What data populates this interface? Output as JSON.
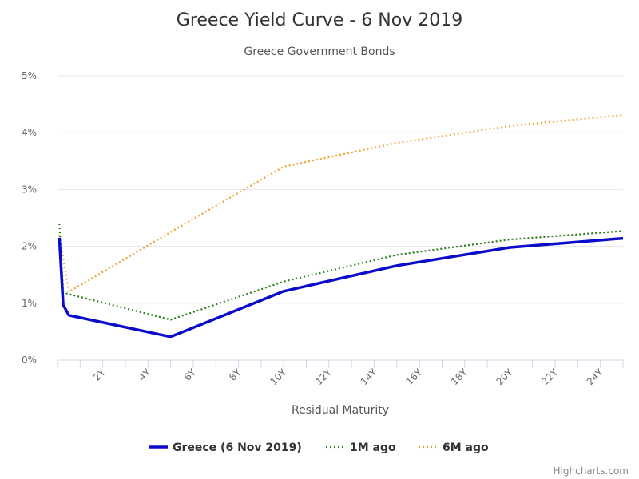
{
  "chart_data": {
    "type": "line",
    "title": "Greece Yield Curve - 6 Nov 2019",
    "subtitle": "Greece Government Bonds",
    "xlabel": "Residual Maturity",
    "ylabel": "",
    "xlim": [
      0,
      25
    ],
    "ylim": [
      0,
      5
    ],
    "x_ticks": [
      2,
      4,
      6,
      8,
      10,
      12,
      14,
      16,
      18,
      20,
      22,
      24
    ],
    "x_tick_labels": [
      "2Y",
      "4Y",
      "6Y",
      "8Y",
      "10Y",
      "12Y",
      "14Y",
      "16Y",
      "18Y",
      "20Y",
      "22Y",
      "24Y"
    ],
    "y_ticks": [
      0,
      1,
      2,
      3,
      4,
      5
    ],
    "y_tick_labels": [
      "0%",
      "1%",
      "2%",
      "3%",
      "4%",
      "5%"
    ],
    "grid": true,
    "legend_position": "bottom-center",
    "series": [
      {
        "name": "Greece (6 Nov 2019)",
        "color": "#0b0bcc",
        "style": "solid",
        "points": [
          [
            0.08,
            2.15
          ],
          [
            0.25,
            0.97
          ],
          [
            0.5,
            0.79
          ],
          [
            5,
            0.41
          ],
          [
            10,
            1.21
          ],
          [
            15,
            1.66
          ],
          [
            20,
            1.98
          ],
          [
            25,
            2.14
          ]
        ]
      },
      {
        "name": "1M ago",
        "color": "#2e7d1e",
        "style": "dotted",
        "points": [
          [
            0.08,
            2.4
          ],
          [
            0.25,
            1.19
          ],
          [
            0.5,
            1.16
          ],
          [
            5,
            0.71
          ],
          [
            10,
            1.38
          ],
          [
            15,
            1.85
          ],
          [
            20,
            2.12
          ],
          [
            25,
            2.27
          ]
        ]
      },
      {
        "name": "6M ago",
        "color": "#f0a030",
        "style": "dotted",
        "points": [
          [
            0.08,
            2.2
          ],
          [
            0.5,
            1.2
          ],
          [
            5,
            2.25
          ],
          [
            10,
            3.4
          ],
          [
            15,
            3.82
          ],
          [
            20,
            4.12
          ],
          [
            25,
            4.31
          ]
        ]
      }
    ]
  },
  "credits": "Highcharts.com"
}
